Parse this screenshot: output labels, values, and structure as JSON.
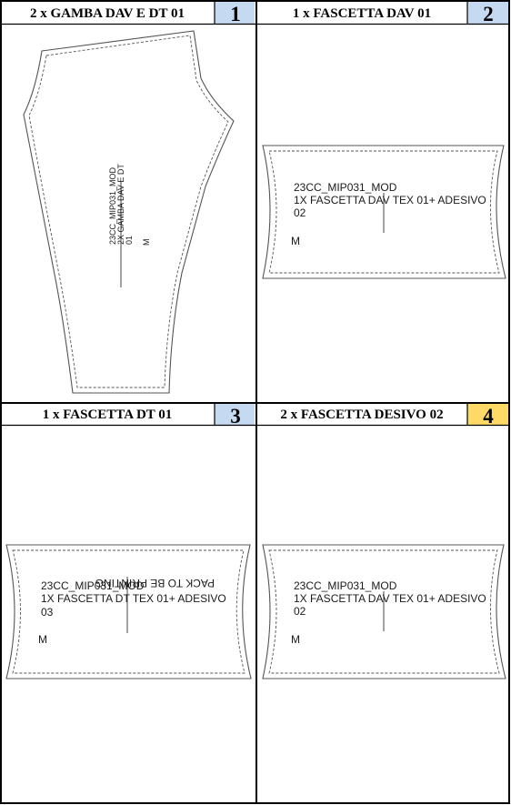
{
  "colors": {
    "badge_blue": "#c5d9f1",
    "badge_yellow": "#ffd966",
    "border": "#000000",
    "outline": "#5a5a5a"
  },
  "panels": [
    {
      "title": "2 x GAMBA DAV E DT 01",
      "number": "1",
      "badge_color": "#c5d9f1",
      "piece_lines": [
        "23CC_MIP031_MOD",
        "2X GAMBA DAV E DT",
        "01"
      ],
      "size": "M"
    },
    {
      "title": "1 x FASCETTA DAV 01",
      "number": "2",
      "badge_color": "#c5d9f1",
      "piece_lines": [
        "23CC_MIP031_MOD",
        "1X FASCETTA DAV TEX 01+ ADESIVO",
        "02"
      ],
      "size": "M"
    },
    {
      "title": "1 x FASCETTA DT 01",
      "number": "3",
      "badge_color": "#c5d9f1",
      "piece_lines": [
        "23CC_MIP031_MOD",
        "1X FASCETTA DT TEX 01+ ADESIVO",
        "03"
      ],
      "size": "M",
      "mirrored_note": "PACK TO BE PRINTING"
    },
    {
      "title": "2 x FASCETTA DESIVO 02",
      "number": "4",
      "badge_color": "#ffd966",
      "piece_lines": [
        "23CC_MIP031_MOD",
        "1X FASCETTA DAV TEX 01+ ADESIVO",
        "02"
      ],
      "size": "M"
    }
  ]
}
